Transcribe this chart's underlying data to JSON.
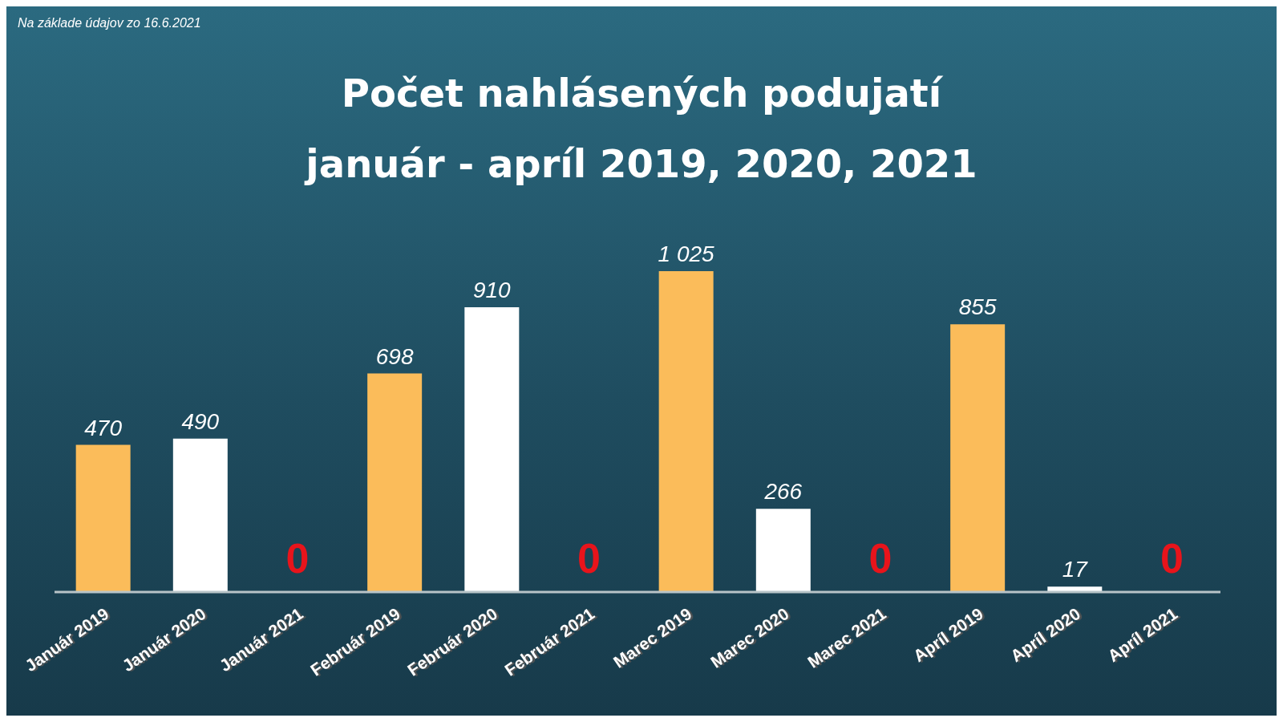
{
  "chart_data": {
    "type": "bar",
    "title": "Počet nahlásených podujatí",
    "subtitle": "január - apríl 2019, 2020, 2021",
    "annotations": [
      "Na základe údajov zo 16.6.2021"
    ],
    "categories": [
      "Január 2019",
      "Január 2020",
      "Január 2021",
      "Február 2019",
      "Február 2020",
      "Február 2021",
      "Marec 2019",
      "Marec 2020",
      "Marec 2021",
      "Apríl 2019",
      "Apríl 2020",
      "Apríl 2021"
    ],
    "values": [
      470,
      490,
      0,
      698,
      910,
      0,
      1025,
      266,
      0,
      855,
      17,
      0
    ],
    "value_labels": [
      "470",
      "490",
      "0",
      "698",
      "910",
      "0",
      "1 025",
      "266",
      "0",
      "855",
      "17",
      "0"
    ],
    "colors": [
      "#fbbc5a",
      "#ffffff",
      "#e8141b",
      "#fbbc5a",
      "#ffffff",
      "#e8141b",
      "#fbbc5a",
      "#ffffff",
      "#e8141b",
      "#fbbc5a",
      "#ffffff",
      "#e8141b"
    ],
    "grid": false,
    "legend": false
  }
}
